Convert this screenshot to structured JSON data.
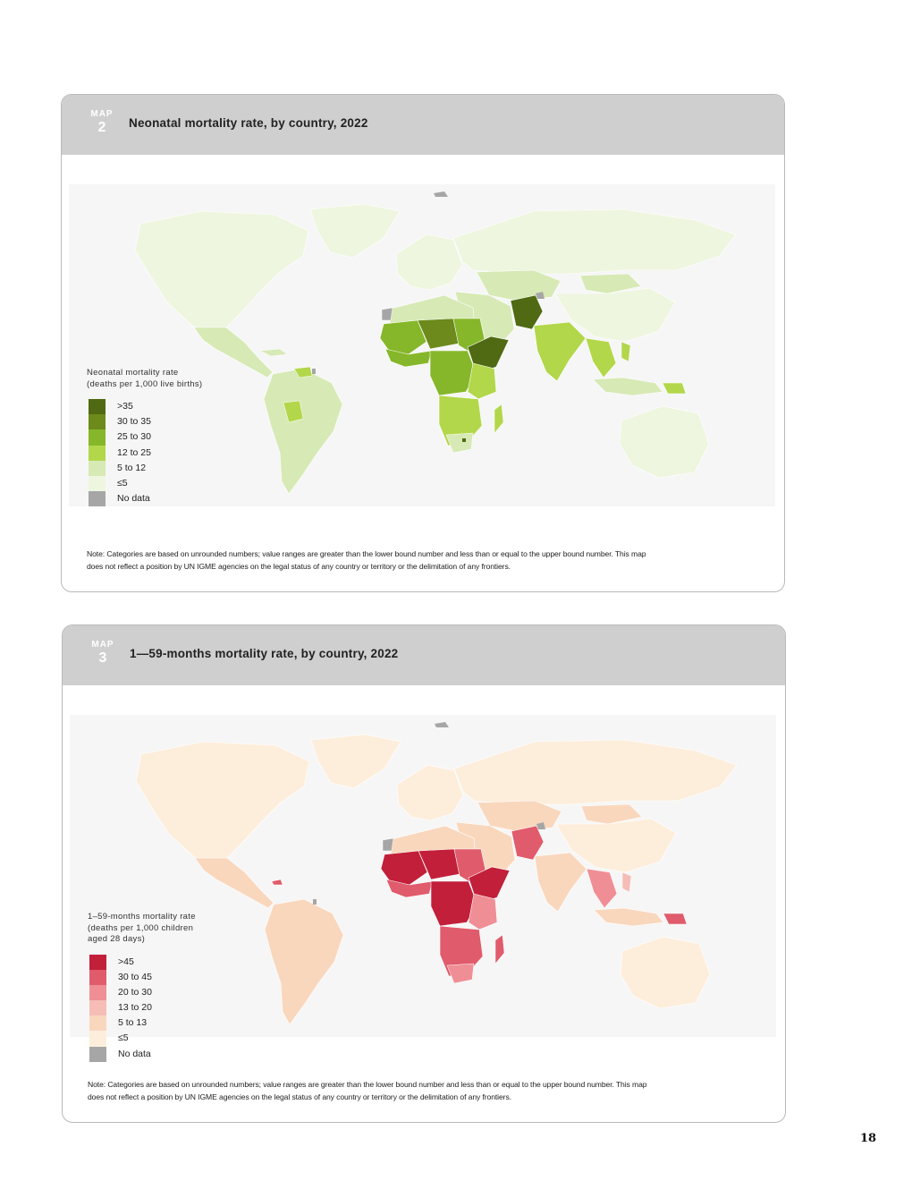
{
  "page": {
    "number": "18"
  },
  "maps": [
    {
      "tag": "MAP",
      "number": "2",
      "title": "Neonatal mortality rate, by country, 2022",
      "legend": {
        "title_line1": "Neonatal mortality rate",
        "title_line2": "(deaths per 1,000 live births)",
        "title_line3": "",
        "items": [
          {
            "label": ">35",
            "color": "#4f6a12"
          },
          {
            "label": "30 to 35",
            "color": "#6d8a1c"
          },
          {
            "label": "25 to 30",
            "color": "#86b72a"
          },
          {
            "label": "12 to 25",
            "color": "#b2d74a"
          },
          {
            "label": "5 to 12",
            "color": "#d7e9b5"
          },
          {
            "label": "≤5",
            "color": "#eef6e0"
          },
          {
            "label": "No data",
            "color": "#a6a6a6"
          }
        ]
      },
      "note_line1": "Note: Categories are based on unrounded numbers; value ranges are greater than the lower bound number and less than or equal to the upper bound number. This map",
      "note_line2": "does not reflect a position by UN IGME agencies on the legal status of any country or territory or the delimitation of any frontiers."
    },
    {
      "tag": "MAP",
      "number": "3",
      "title": "1—59-months mortality rate, by country, 2022",
      "legend": {
        "title_line1": "1–59-months mortality rate",
        "title_line2": "(deaths per 1,000 children",
        "title_line3": "aged 28 days)",
        "items": [
          {
            "label": ">45",
            "color": "#c21f3a"
          },
          {
            "label": "30 to 45",
            "color": "#e05b6b"
          },
          {
            "label": "20 to 30",
            "color": "#ef8f95"
          },
          {
            "label": "13 to 20",
            "color": "#f5bdb6"
          },
          {
            "label": "5 to 13",
            "color": "#f9d7bd"
          },
          {
            "label": "≤5",
            "color": "#fdeedc"
          },
          {
            "label": "No data",
            "color": "#a6a6a6"
          }
        ]
      },
      "note_line1": "Note: Categories are based on unrounded numbers; value ranges are greater than the lower bound number and less than or equal to the upper bound number. This map",
      "note_line2": "does not reflect a position by UN IGME agencies on the legal status of any country or territory or the delimitation of any frontiers."
    }
  ]
}
